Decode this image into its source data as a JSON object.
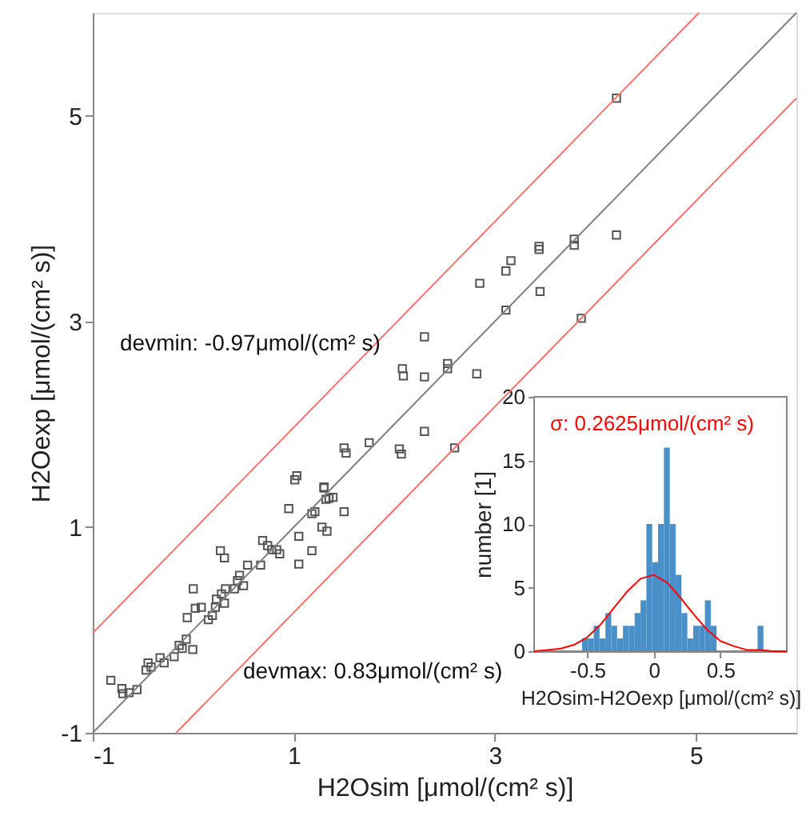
{
  "chart_data": [
    {
      "type": "scatter",
      "xlabel": "H2Osim [μmol/(cm² s)]",
      "ylabel": "H2Oexp [μmol/(cm² s)]",
      "xlim": [
        -1,
        6
      ],
      "ylim": [
        -1,
        6
      ],
      "xticks": [
        -1,
        1,
        3,
        5
      ],
      "yticks": [
        -1,
        1,
        3,
        5
      ],
      "annotations": [
        "devmin: -0.97μmol/(cm² s)",
        "devmax: 0.83μmol/(cm² s)"
      ],
      "series": [
        {
          "color": "#555555",
          "marker": "square",
          "x": [
            -0.82,
            -0.71,
            -0.7,
            -0.64,
            -0.56,
            -0.45,
            -0.47,
            -0.42,
            -0.33,
            -0.29,
            -0.19,
            -0.14,
            -0.07,
            -0.11,
            -0.005,
            -0.06,
            0.0,
            0.02,
            0.08,
            0.15,
            0.19,
            0.22,
            0.23,
            0.28,
            0.31,
            0.32,
            0.41,
            0.44,
            0.5,
            0.46,
            0.27,
            0.31,
            0.54,
            0.69,
            0.74,
            0.78,
            0.83,
            0.86,
            0.67,
            0.95,
            1.05,
            1.05,
            1.18,
            1.18,
            1.21,
            1.28,
            1.33,
            1.3,
            1.32,
            1.39,
            1.5,
            1.01,
            1.03,
            1.3,
            1.35,
            1.5,
            1.52,
            1.75,
            2.05,
            2.07,
            2.3,
            2.08,
            2.09,
            2.3,
            2.3,
            2.53,
            2.53,
            2.82,
            2.6,
            2.85,
            3.11,
            3.16,
            3.11,
            3.44,
            3.44,
            3.45,
            3.79,
            3.79,
            3.86,
            4.21,
            4.21
          ],
          "values": [
            -0.49,
            -0.57,
            -0.62,
            -0.61,
            -0.58,
            -0.32,
            -0.39,
            -0.36,
            -0.27,
            -0.32,
            -0.26,
            -0.15,
            -0.09,
            -0.18,
            -0.19,
            0.12,
            0.4,
            0.21,
            0.22,
            0.1,
            0.14,
            0.22,
            0.3,
            0.35,
            0.26,
            0.4,
            0.4,
            0.48,
            0.43,
            0.53,
            0.77,
            0.7,
            0.63,
            0.87,
            0.82,
            0.78,
            0.78,
            0.74,
            0.63,
            1.18,
            0.91,
            0.64,
            0.77,
            1.13,
            1.15,
            1.0,
            0.96,
            1.38,
            1.27,
            1.29,
            1.15,
            1.46,
            1.5,
            1.39,
            1.28,
            1.77,
            1.72,
            1.82,
            1.76,
            1.71,
            1.93,
            2.54,
            2.47,
            2.46,
            2.85,
            2.59,
            2.54,
            2.49,
            1.77,
            3.37,
            3.49,
            3.59,
            3.11,
            3.73,
            3.7,
            3.29,
            3.8,
            3.74,
            3.03,
            3.84,
            5.17
          ]
        },
        {
          "type": "line",
          "color": "#808080",
          "x": [
            -1,
            6
          ],
          "values": [
            -1,
            6
          ]
        },
        {
          "type": "line",
          "color": "#ff7070",
          "x": [
            -1,
            5.03
          ],
          "values": [
            -0.03,
            6
          ]
        },
        {
          "type": "line",
          "color": "#ff7070",
          "x": [
            -0.17,
            6
          ],
          "values": [
            -1,
            5.17
          ]
        }
      ]
    },
    {
      "type": "histogram",
      "xlabel": "H2Osim-H2Oexp [μmol/(cm² s)]",
      "ylabel": "number [1]",
      "xlim": [
        -0.9,
        1
      ],
      "ylim": [
        0,
        20
      ],
      "xticks": [
        -0.5,
        0,
        0.5
      ],
      "yticks": [
        0,
        5,
        10,
        15,
        20
      ],
      "color": "#4a90c8",
      "bins": [
        -0.54,
        -0.496,
        -0.452,
        -0.408,
        -0.364,
        -0.32,
        -0.276,
        -0.232,
        -0.188,
        -0.144,
        -0.1,
        -0.056,
        -0.012,
        0.032,
        0.076,
        0.12,
        0.164,
        0.208,
        0.252,
        0.296,
        0.34,
        0.384,
        0.428,
        0.472,
        0.516,
        0.56,
        0.604,
        0.648,
        0.692,
        0.736,
        0.78,
        0.824
      ],
      "values": [
        1,
        1,
        2,
        1,
        3,
        2,
        1,
        2,
        2,
        3,
        4,
        10,
        7,
        10,
        16,
        10,
        6,
        3,
        1,
        2,
        2,
        4,
        2,
        0,
        0,
        0,
        0,
        0,
        0,
        0,
        2
      ],
      "annotations": [
        "σ: 0.2625μmol/(cm² s)"
      ],
      "series": [
        {
          "type": "line",
          "color": "#ff0000",
          "x": [
            -0.9,
            -0.8,
            -0.7,
            -0.6,
            -0.5,
            -0.4,
            -0.3,
            -0.2,
            -0.1,
            0,
            0.1,
            0.2,
            0.3,
            0.4,
            0.5,
            0.6,
            0.7,
            0.8,
            0.9,
            1.0
          ],
          "values": [
            0.0,
            0.1,
            0.2,
            0.5,
            1.1,
            2.1,
            3.4,
            4.7,
            5.7,
            6.0,
            5.4,
            4.2,
            2.9,
            1.7,
            0.8,
            0.4,
            0.1,
            0.1,
            0.0,
            0.0
          ]
        }
      ]
    }
  ]
}
